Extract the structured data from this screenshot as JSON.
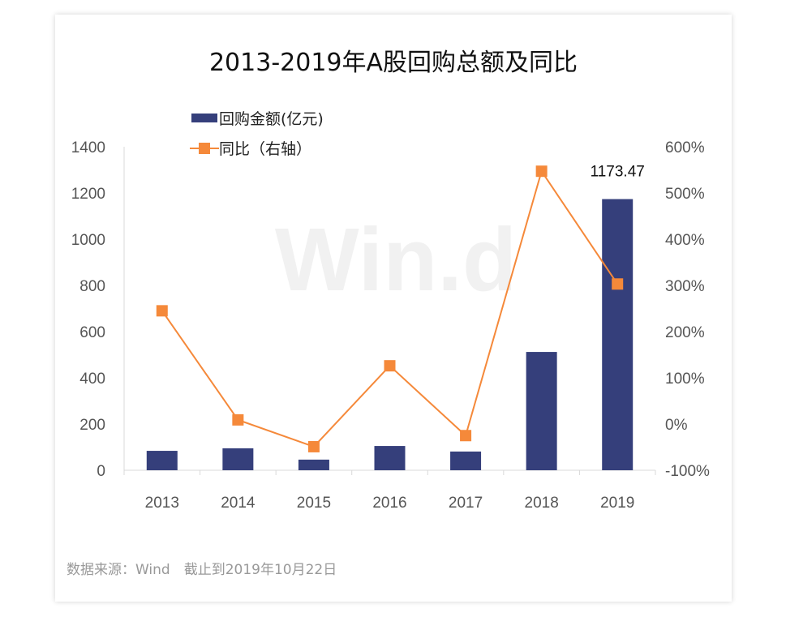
{
  "title": "2013-2019年A股回购总额及同比",
  "footer": "数据来源：Wind　截止到2019年10月22日",
  "watermark": "Win.d",
  "chart_data": {
    "type": "bar",
    "title": "2013-2019年A股回购总额及同比",
    "categories": [
      "2013",
      "2014",
      "2015",
      "2016",
      "2017",
      "2018",
      "2019"
    ],
    "series": [
      {
        "name": "回购金额(亿元)",
        "type": "bar",
        "axis": "left",
        "color": "#353f7b",
        "values": [
          84,
          95,
          46,
          105,
          81,
          512,
          1173.47
        ]
      },
      {
        "name": "同比（右轴）",
        "type": "line",
        "axis": "right",
        "color": "#f5893a",
        "marker": "square",
        "values": [
          245,
          9,
          -49,
          126,
          -25,
          547,
          303
        ]
      }
    ],
    "data_labels": [
      {
        "category": "2019",
        "text": "1173.47"
      }
    ],
    "left_axis": {
      "ylim": [
        0,
        1400
      ],
      "ticks": [
        "0",
        "200",
        "400",
        "600",
        "800",
        "1000",
        "1200",
        "1400"
      ]
    },
    "right_axis": {
      "ylim": [
        -100,
        600
      ],
      "ticks": [
        "-100%",
        "0%",
        "100%",
        "200%",
        "300%",
        "400%",
        "500%",
        "600%"
      ]
    },
    "legend_placement": "top-left",
    "grid": false
  }
}
